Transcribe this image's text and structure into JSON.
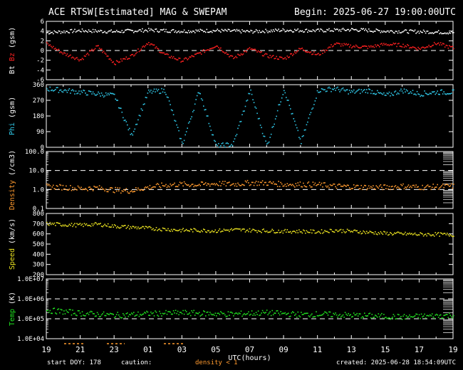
{
  "title": "ACE RTSW[Estimated] MAG & SWEPAM",
  "begin": "Begin: 2025-06-27 19:00:00UTC",
  "footer": {
    "start_doy": "start DOY: 178",
    "caution": "caution:",
    "density_note": "density < 1",
    "created": "created: 2025-06-28 18:54:09UTC"
  },
  "colors": {
    "bt": "#ffffff",
    "bz": "#ff2020",
    "phi": "#30c8e8",
    "density": "#ff9a2e",
    "speed": "#e8e020",
    "temp": "#20e020",
    "frame": "#ffffff",
    "dash": "#ffffff"
  },
  "chart_data": [
    {
      "type": "scatter",
      "name": "mag",
      "ylabel_parts": [
        {
          "text": "Bt",
          "color": "#ffffff"
        },
        {
          "text": "Bz",
          "color": "#ff2020"
        },
        {
          "text": "(gsm)",
          "color": "#ffffff"
        }
      ],
      "ylim": [
        -6,
        6
      ],
      "yticks": [
        "6",
        "4",
        "2",
        "0",
        "-2",
        "-4",
        "-6"
      ],
      "ytick_values": [
        6,
        4,
        2,
        0,
        -2,
        -4,
        -6
      ],
      "dashed_at": [
        0
      ],
      "series": [
        {
          "name": "Bt",
          "color": "#ffffff",
          "x": [
            0,
            2,
            4,
            6,
            8,
            10,
            12,
            14,
            16,
            18,
            20,
            22,
            24
          ],
          "y": [
            3.8,
            4.2,
            4.0,
            4.3,
            4.1,
            4.2,
            4.0,
            4.3,
            4.2,
            4.4,
            4.1,
            4.0,
            3.8
          ]
        },
        {
          "name": "Bz",
          "color": "#ff2020",
          "x": [
            0,
            1,
            2,
            3,
            4,
            5,
            6,
            7,
            8,
            9,
            10,
            11,
            12,
            13,
            14,
            15,
            16,
            17,
            18,
            19,
            20,
            21,
            22,
            23,
            24
          ],
          "y": [
            1.5,
            -0.5,
            -1.8,
            1.0,
            -2.5,
            -1.0,
            1.8,
            -0.8,
            -2.0,
            -0.5,
            1.2,
            -1.5,
            0.5,
            -1.0,
            -1.6,
            0.5,
            -0.8,
            1.5,
            1.0,
            0.8,
            1.4,
            1.2,
            0.5,
            1.6,
            0.6
          ]
        }
      ]
    },
    {
      "type": "scatter",
      "name": "phi",
      "ylabel_parts": [
        {
          "text": "Phi",
          "color": "#30c8e8"
        },
        {
          "text": "(gsm)",
          "color": "#ffffff"
        }
      ],
      "ylim": [
        0,
        360
      ],
      "yticks": [
        "360",
        "270",
        "180",
        "90",
        "0"
      ],
      "ytick_values": [
        360,
        270,
        180,
        90,
        0
      ],
      "dashed_at": [],
      "series": [
        {
          "name": "Phi",
          "color": "#30c8e8",
          "x": [
            0,
            1,
            2,
            3,
            4,
            5,
            6,
            7,
            8,
            9,
            10,
            11,
            12,
            13,
            14,
            15,
            16,
            17,
            18,
            19,
            20,
            21,
            22,
            23,
            24
          ],
          "y": [
            340,
            330,
            320,
            310,
            300,
            70,
            320,
            330,
            20,
            330,
            10,
            20,
            330,
            10,
            340,
            30,
            330,
            340,
            320,
            330,
            300,
            330,
            310,
            320,
            320
          ]
        }
      ]
    },
    {
      "type": "scatter",
      "name": "density",
      "ylabel_parts": [
        {
          "text": "Density",
          "color": "#ff9a2e"
        },
        {
          "text": "(/cm3)",
          "color": "#ffffff"
        }
      ],
      "yscale": "log",
      "ylim": [
        0.1,
        100
      ],
      "yticks": [
        "100.0",
        "10.0",
        "1.0",
        "0.1"
      ],
      "ytick_values": [
        100,
        10,
        1,
        0.1
      ],
      "dashed_at": [
        10,
        1
      ],
      "series": [
        {
          "name": "Density",
          "color": "#ff9a2e",
          "x": [
            0,
            1,
            2,
            3,
            4,
            5,
            6,
            7,
            8,
            9,
            10,
            11,
            12,
            13,
            14,
            15,
            16,
            17,
            18,
            19,
            20,
            21,
            22,
            23,
            24
          ],
          "y": [
            1.5,
            1.4,
            1.2,
            1.3,
            1.0,
            0.9,
            1.4,
            1.8,
            2.0,
            1.9,
            2.2,
            2.0,
            2.4,
            2.3,
            2.0,
            2.0,
            1.9,
            1.6,
            1.5,
            1.4,
            1.4,
            1.6,
            1.4,
            1.5,
            1.6
          ]
        }
      ]
    },
    {
      "type": "scatter",
      "name": "speed",
      "ylabel_parts": [
        {
          "text": "Speed",
          "color": "#e8e020"
        },
        {
          "text": "(km/s)",
          "color": "#ffffff"
        }
      ],
      "ylim": [
        200,
        800
      ],
      "yticks": [
        "800",
        "700",
        "600",
        "500",
        "400",
        "300",
        "200"
      ],
      "ytick_values": [
        800,
        700,
        600,
        500,
        400,
        300,
        200
      ],
      "dashed_at": [],
      "series": [
        {
          "name": "Speed",
          "color": "#e8e020",
          "x": [
            0,
            1,
            2,
            3,
            4,
            5,
            6,
            7,
            8,
            9,
            10,
            11,
            12,
            13,
            14,
            15,
            16,
            17,
            18,
            19,
            20,
            21,
            22,
            23,
            24
          ],
          "y": [
            705,
            695,
            690,
            700,
            680,
            670,
            660,
            650,
            640,
            640,
            635,
            645,
            640,
            635,
            630,
            630,
            625,
            640,
            630,
            620,
            610,
            605,
            600,
            600,
            595
          ]
        }
      ]
    },
    {
      "type": "scatter",
      "name": "temp",
      "ylabel_parts": [
        {
          "text": "Temp",
          "color": "#20e020"
        },
        {
          "text": "(K)",
          "color": "#ffffff"
        }
      ],
      "yscale": "log",
      "ylim": [
        10000,
        10000000
      ],
      "yticks": [
        "1.0E+07",
        "1.0E+06",
        "1.0E+05",
        "1.0E+04"
      ],
      "ytick_values": [
        10000000,
        1000000,
        100000,
        10000
      ],
      "dashed_at": [
        1000000,
        100000
      ],
      "xlabel": "UTC(hours)",
      "xticks": [
        "19",
        "21",
        "23",
        "01",
        "03",
        "05",
        "07",
        "09",
        "11",
        "13",
        "15",
        "17",
        "19"
      ],
      "series": [
        {
          "name": "Temp",
          "color": "#20e020",
          "x": [
            0,
            1,
            2,
            3,
            4,
            5,
            6,
            7,
            8,
            9,
            10,
            11,
            12,
            13,
            14,
            15,
            16,
            17,
            18,
            19,
            20,
            21,
            22,
            23,
            24
          ],
          "y": [
            280000,
            240000,
            200000,
            180000,
            160000,
            170000,
            190000,
            200000,
            210000,
            200000,
            190000,
            180000,
            200000,
            210000,
            190000,
            170000,
            180000,
            170000,
            160000,
            150000,
            140000,
            130000,
            140000,
            150000,
            160000
          ]
        }
      ]
    }
  ]
}
